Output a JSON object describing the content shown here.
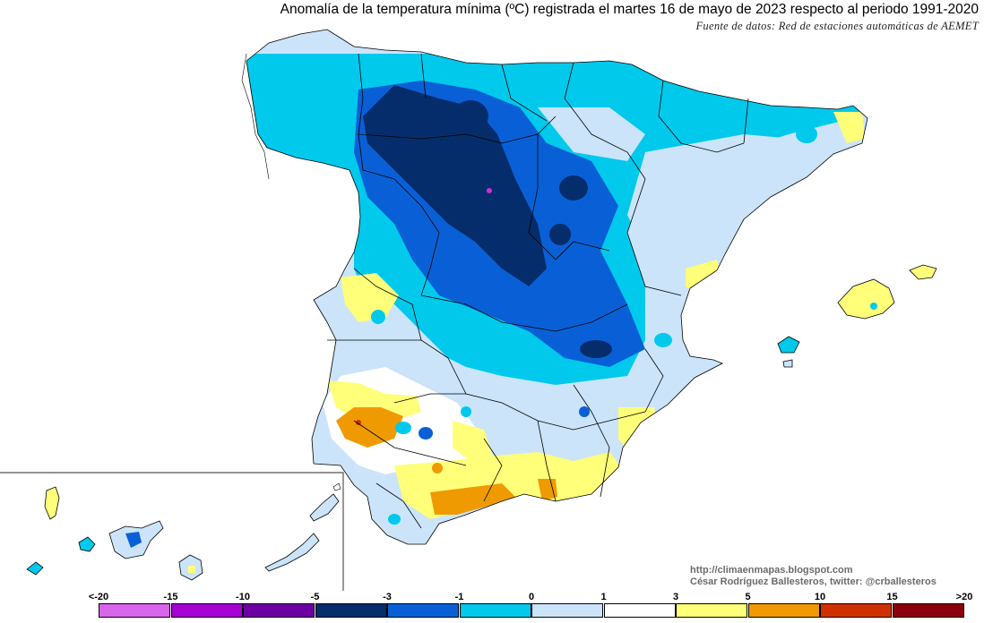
{
  "title": "Anomalía de la temperatura mínima (ºC) registrada el martes 16 de mayo de 2023 respecto al periodo 1991-2020",
  "subtitle": "Fuente de datos: Red de estaciones automáticas de AEMET",
  "credit": {
    "url": "http://climaenmapas.blogspot.com",
    "author": "César Rodríguez Ballesteros, twitter: @crballesteros"
  },
  "legend": {
    "labels": [
      "<-20",
      "-15",
      "-10",
      "-5",
      "-3",
      "-1",
      "0",
      "1",
      "3",
      "5",
      "10",
      "15",
      ">20"
    ],
    "colors": [
      "#d965ec",
      "#a500d4",
      "#6d00a3",
      "#062d6b",
      "#0960d6",
      "#00c9ec",
      "#cbe4fa",
      "#ffffff",
      "#ffff7a",
      "#ef9a00",
      "#cf3200",
      "#8c000d",
      "#633400"
    ]
  }
}
